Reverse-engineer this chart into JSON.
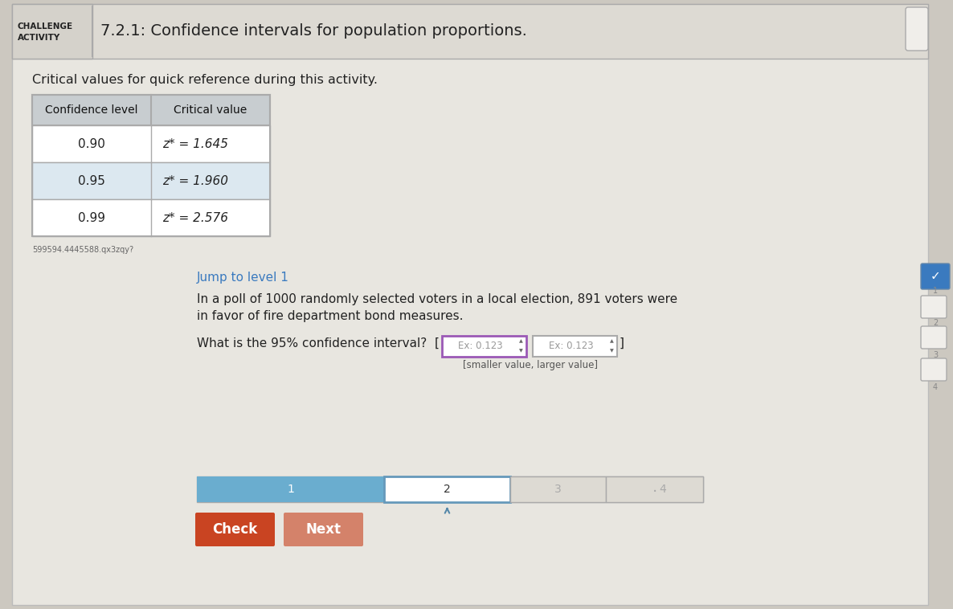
{
  "bg_color": "#ccc8c0",
  "header_bg": "#d8d4cc",
  "content_bg": "#d8d4cc",
  "white_panel_bg": "#e8e5df",
  "header_border": "#aaaaaa",
  "challenge_line1": "CHALLENGE",
  "challenge_line2": "ACTIVITY",
  "title": "7.2.1: Confidence intervals for population proportions.",
  "table_header_bg": "#c8cdd0",
  "table_row1_bg": "#ffffff",
  "table_row2_bg": "#dce8f0",
  "table_border": "#aaaaaa",
  "col1_header": "Confidence level",
  "col2_header": "Critical value",
  "table_data": [
    [
      "0.90",
      "z* = 1.645"
    ],
    [
      "0.95",
      "z* = 1.960"
    ],
    [
      "0.99",
      "z* = 2.576"
    ]
  ],
  "ref_text": "Critical values for quick reference during this activity.",
  "small_text": "599594.4445588.qx3zqy?",
  "jump_text": "Jump to level 1",
  "poll_line1": "In a poll of 1000 randomly selected voters in a local election, 891 voters were",
  "poll_line2": "in favor of fire department bond measures.",
  "question_text": "What is the 95% confidence interval?",
  "input_placeholder": "Ex: 0.123",
  "bracket_text": "[smaller value, larger value]",
  "progress_labels": [
    "1",
    "2",
    "3",
    "4"
  ],
  "check_btn_color": "#c94422",
  "next_btn_color": "#d4826a",
  "check_btn_text": "Check",
  "next_btn_text": "Next",
  "input_border_color": "#9b59b6",
  "blue_progress": "#6aadcf",
  "right_check_bg": "#3a7abf"
}
